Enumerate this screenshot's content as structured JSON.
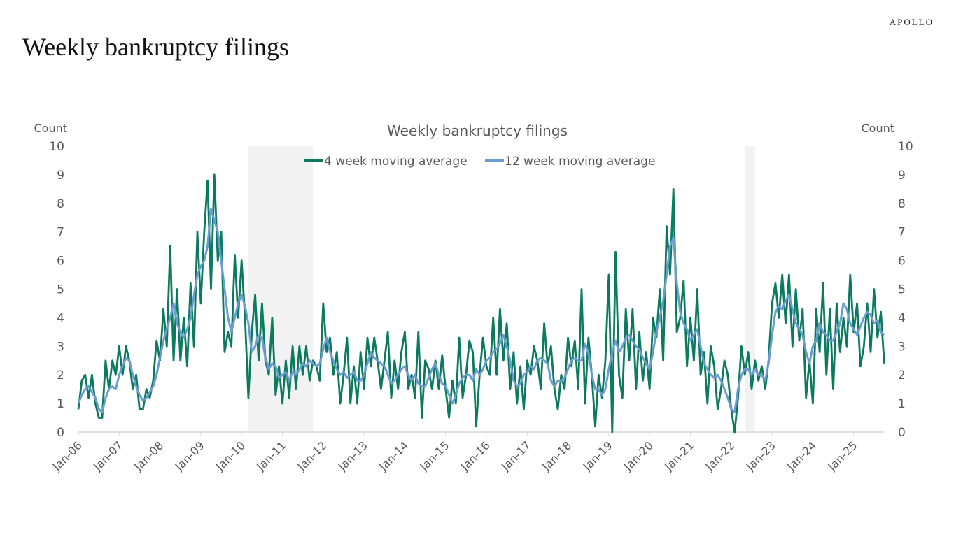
{
  "page": {
    "title": "Weekly bankruptcy filings",
    "logo": "APOLLO"
  },
  "chart_data": {
    "type": "line",
    "title": "Weekly bankruptcy filings",
    "ylabel_left": "Count",
    "ylabel_right": "Count",
    "ylim": [
      0,
      10
    ],
    "yticks": [
      "0",
      "1",
      "2",
      "3",
      "4",
      "5",
      "6",
      "7",
      "8",
      "9",
      "10"
    ],
    "x_start": "Jan-06",
    "x_frequency": "monthly",
    "x_end": "Oct-25",
    "xticks": [
      "Jan-06",
      "Jan-07",
      "Jan-08",
      "Jan-09",
      "Jan-10",
      "Jan-11",
      "Jan-12",
      "Jan-13",
      "Jan-14",
      "Jan-15",
      "Jan-16",
      "Jan-17",
      "Jan-18",
      "Jan-19",
      "Jan-20",
      "Jan-21",
      "Jan-22",
      "Jan-23",
      "Jan-24",
      "Jan-25"
    ],
    "shaded_periods": [
      [
        "Mar-10",
        "Oct-11"
      ],
      [
        "May-22",
        "Aug-22"
      ]
    ],
    "shade_color": "#f2f2f2",
    "grid": false,
    "legend_position": "top-center",
    "series": [
      {
        "name": "4 week moving average",
        "color": "#0b7a5e",
        "values": [
          0.8,
          1.8,
          2.0,
          1.2,
          2.0,
          1.0,
          0.5,
          0.5,
          2.5,
          1.5,
          2.5,
          2.0,
          3.0,
          2.0,
          3.0,
          2.5,
          1.5,
          2.0,
          0.8,
          0.8,
          1.5,
          1.2,
          1.8,
          3.2,
          2.5,
          4.3,
          3.0,
          6.5,
          2.5,
          5.0,
          2.5,
          4.0,
          2.3,
          5.2,
          3.0,
          7.0,
          4.5,
          7.0,
          8.8,
          5.0,
          9.0,
          6.0,
          7.0,
          2.8,
          3.5,
          3.0,
          6.2,
          4.0,
          6.0,
          4.0,
          1.2,
          3.5,
          4.8,
          2.5,
          4.5,
          2.5,
          2.0,
          4.0,
          1.3,
          2.3,
          1.0,
          2.5,
          1.2,
          3.0,
          1.5,
          3.0,
          2.0,
          3.0,
          1.8,
          2.5,
          2.3,
          1.8,
          4.5,
          2.8,
          3.3,
          2.0,
          2.8,
          1.0,
          2.0,
          3.3,
          1.0,
          2.3,
          1.0,
          2.8,
          1.5,
          3.3,
          2.3,
          3.3,
          2.5,
          1.5,
          2.5,
          3.5,
          1.2,
          2.5,
          1.5,
          2.8,
          3.5,
          1.5,
          2.0,
          1.2,
          3.5,
          0.5,
          2.5,
          2.2,
          1.5,
          2.5,
          1.5,
          2.7,
          1.5,
          0.5,
          1.8,
          1.0,
          3.3,
          1.2,
          2.0,
          3.2,
          2.8,
          0.2,
          2.0,
          3.3,
          2.3,
          2.0,
          4.0,
          2.0,
          4.3,
          2.5,
          3.8,
          1.5,
          2.8,
          1.0,
          2.3,
          0.8,
          2.5,
          2.0,
          3.0,
          2.5,
          1.5,
          3.8,
          2.3,
          3.0,
          1.5,
          0.8,
          2.0,
          1.5,
          3.3,
          2.3,
          3.2,
          1.5,
          5.0,
          1.0,
          3.3,
          2.0,
          0.2,
          2.0,
          1.2,
          2.5,
          5.5,
          0.0,
          6.3,
          2.0,
          1.2,
          4.3,
          2.5,
          4.3,
          1.5,
          3.5,
          1.8,
          2.8,
          1.5,
          4.0,
          3.3,
          5.0,
          2.5,
          7.2,
          5.5,
          8.5,
          3.5,
          4.0,
          5.3,
          2.3,
          4.0,
          2.5,
          5.0,
          2.0,
          2.8,
          1.0,
          3.0,
          2.3,
          0.8,
          1.5,
          2.5,
          2.0,
          0.8,
          0.0,
          1.2,
          3.0,
          2.0,
          2.8,
          1.5,
          2.5,
          1.8,
          2.3,
          1.5,
          2.5,
          4.5,
          5.2,
          4.0,
          5.5,
          3.8,
          5.5,
          3.0,
          5.0,
          3.2,
          4.3,
          1.2,
          2.5,
          1.0,
          4.3,
          2.8,
          5.2,
          2.0,
          4.3,
          1.5,
          4.5,
          2.8,
          4.0,
          3.0,
          5.5,
          3.5,
          4.5,
          2.3,
          3.0,
          4.5,
          2.8,
          5.0,
          3.3,
          4.2,
          2.4
        ]
      },
      {
        "name": "12 week moving average",
        "color": "#6a9bd1",
        "values": [
          1.0,
          1.3,
          1.5,
          1.6,
          1.4,
          1.2,
          0.8,
          0.7,
          1.2,
          1.5,
          1.6,
          1.5,
          2.0,
          2.3,
          2.6,
          2.5,
          2.0,
          1.6,
          1.3,
          1.1,
          1.2,
          1.4,
          1.6,
          2.0,
          2.6,
          3.2,
          3.6,
          4.0,
          4.5,
          3.8,
          3.5,
          3.3,
          3.6,
          4.0,
          4.8,
          5.5,
          5.8,
          6.0,
          6.5,
          7.8,
          7.4,
          7.0,
          6.0,
          5.0,
          4.0,
          3.5,
          4.0,
          4.5,
          4.8,
          4.4,
          3.8,
          2.8,
          3.0,
          3.4,
          3.3,
          2.6,
          2.2,
          2.4,
          2.3,
          1.9,
          2.0,
          2.1,
          1.8,
          2.1,
          2.0,
          2.2,
          2.4,
          2.3,
          2.5,
          2.4,
          2.3,
          2.4,
          2.9,
          3.3,
          2.8,
          2.5,
          2.2,
          2.0,
          2.1,
          1.9,
          2.0,
          2.1,
          1.8,
          1.8,
          2.0,
          2.4,
          2.8,
          2.6,
          2.5,
          2.4,
          2.3,
          2.0,
          1.7,
          1.8,
          2.0,
          2.2,
          2.3,
          2.0,
          1.8,
          2.0,
          1.7,
          1.6,
          1.6,
          1.9,
          2.2,
          2.4,
          2.0,
          1.7,
          1.6,
          1.3,
          1.0,
          1.3,
          1.7,
          1.9,
          2.0,
          2.0,
          1.8,
          2.2,
          2.0,
          2.2,
          2.5,
          2.6,
          2.8,
          2.9,
          3.1,
          3.4,
          3.0,
          2.5,
          1.8,
          1.6,
          1.7,
          2.0,
          2.1,
          2.3,
          2.2,
          2.5,
          2.6,
          2.5,
          2.4,
          1.8,
          1.6,
          1.8,
          1.8,
          1.9,
          2.2,
          2.5,
          2.6,
          2.5,
          2.5,
          3.1,
          2.8,
          2.0,
          1.5,
          1.5,
          1.3,
          1.5,
          2.2,
          2.8,
          3.2,
          2.8,
          3.0,
          3.3,
          3.4,
          3.2,
          3.0,
          2.9,
          2.6,
          2.4,
          2.2,
          2.8,
          3.5,
          4.0,
          4.6,
          5.5,
          6.5,
          6.8,
          5.2,
          4.2,
          3.8,
          3.6,
          3.2,
          3.4,
          3.6,
          3.0,
          2.4,
          2.2,
          2.0,
          1.9,
          2.0,
          1.8,
          1.5,
          1.2,
          0.8,
          0.7,
          1.5,
          2.0,
          2.2,
          2.2,
          2.0,
          2.2,
          2.0,
          2.0,
          1.8,
          2.4,
          3.4,
          4.2,
          4.4,
          4.3,
          4.6,
          4.8,
          4.3,
          3.8,
          3.6,
          3.4,
          2.8,
          2.4,
          3.0,
          3.2,
          3.8,
          3.5,
          3.4,
          3.2,
          3.2,
          3.5,
          3.8,
          4.5,
          4.3,
          3.8,
          3.6,
          3.4,
          3.7,
          4.0,
          4.2,
          4.1,
          3.8,
          3.9,
          3.5,
          3.4
        ]
      }
    ]
  }
}
